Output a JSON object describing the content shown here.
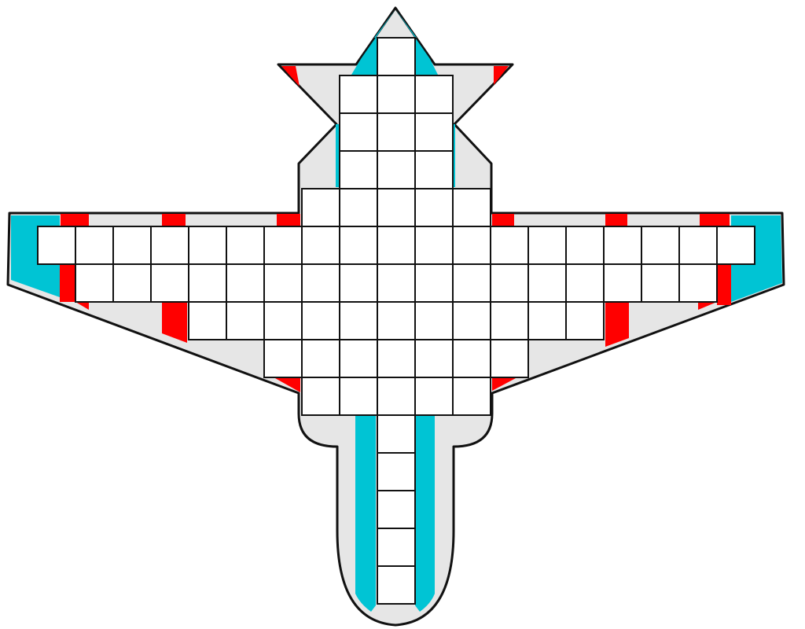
{
  "board": {
    "name": "spaceship-grid",
    "colors": {
      "hull": "#e6e6e6",
      "outline": "#111111",
      "accent_cyan": "#00c4d4",
      "accent_red": "#ff0000",
      "cell_fill": "#ffffff",
      "cell_stroke": "#111111"
    },
    "grid_rows": [
      {
        "row": 0,
        "cols": [
          9
        ]
      },
      {
        "row": 1,
        "cols": [
          8,
          9,
          10
        ]
      },
      {
        "row": 2,
        "cols": [
          8,
          9,
          10
        ]
      },
      {
        "row": 3,
        "cols": [
          8,
          9,
          10
        ]
      },
      {
        "row": 4,
        "cols": [
          7,
          8,
          9,
          10,
          11
        ]
      },
      {
        "row": 5,
        "cols": [
          0,
          1,
          2,
          3,
          4,
          5,
          6,
          7,
          8,
          9,
          10,
          11,
          12,
          13,
          14,
          15,
          16,
          17,
          18
        ]
      },
      {
        "row": 6,
        "cols": [
          1,
          2,
          3,
          4,
          5,
          6,
          7,
          8,
          9,
          10,
          11,
          12,
          13,
          14,
          15,
          16,
          17
        ]
      },
      {
        "row": 7,
        "cols": [
          4,
          5,
          6,
          7,
          8,
          9,
          10,
          11,
          12,
          13,
          14
        ]
      },
      {
        "row": 8,
        "cols": [
          6,
          7,
          8,
          9,
          10,
          11,
          12
        ]
      },
      {
        "row": 9,
        "cols": [
          7,
          8,
          9,
          10,
          11
        ]
      },
      {
        "row": 10,
        "cols": [
          9
        ]
      },
      {
        "row": 11,
        "cols": [
          9
        ]
      },
      {
        "row": 12,
        "cols": [
          9
        ]
      },
      {
        "row": 13,
        "cols": [
          9
        ]
      },
      {
        "row": 14,
        "cols": [
          9
        ]
      }
    ]
  }
}
